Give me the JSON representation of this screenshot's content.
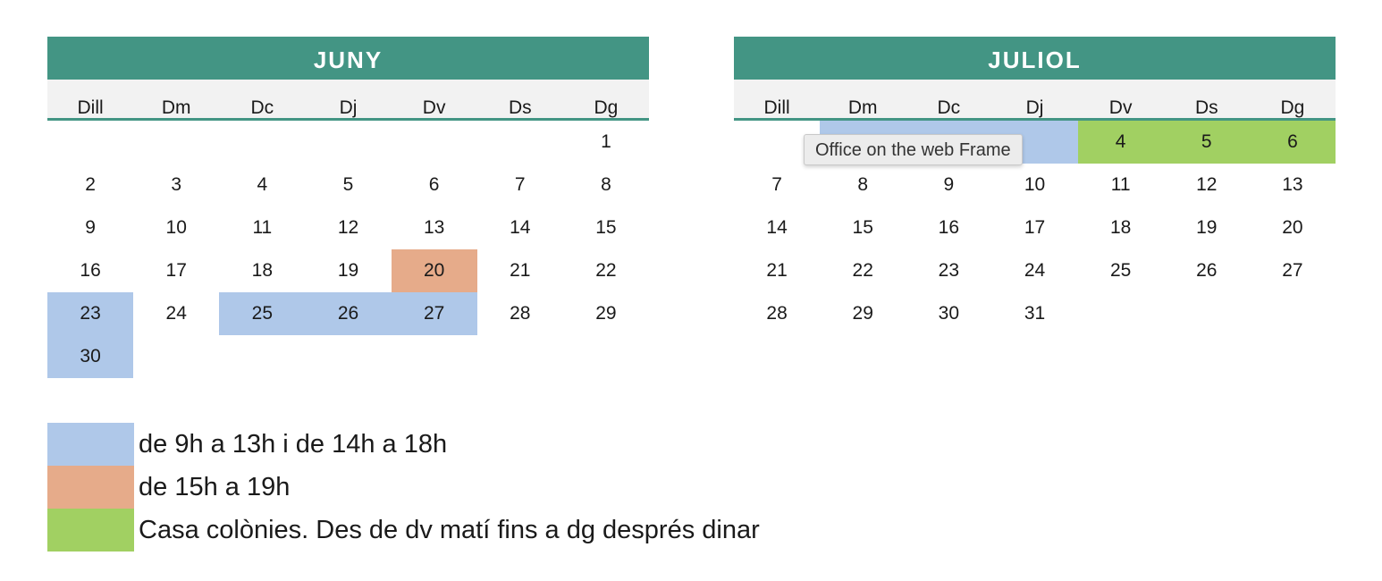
{
  "colors": {
    "header_bg": "#439584",
    "header_text": "#ffffff",
    "weekday_bg": "#f2f2f2",
    "blue": "#afc8e9",
    "orange": "#e6ab8a",
    "green": "#a1d062"
  },
  "weekdays": [
    "Dill",
    "Dm",
    "Dc",
    "Dj",
    "Dv",
    "Ds",
    "Dg"
  ],
  "months": [
    {
      "title": "JUNY",
      "weeks": [
        [
          "",
          "",
          "",
          "",
          "",
          "",
          "1"
        ],
        [
          "2",
          "3",
          "4",
          "5",
          "6",
          "7",
          "8"
        ],
        [
          "9",
          "10",
          "11",
          "12",
          "13",
          "14",
          "15"
        ],
        [
          "16",
          "17",
          "18",
          "19",
          "20",
          "21",
          "22"
        ],
        [
          "23",
          "24",
          "25",
          "26",
          "27",
          "28",
          "29"
        ],
        [
          "30",
          "",
          "",
          "",
          "",
          "",
          ""
        ]
      ],
      "highlights": {
        "20": "orange",
        "23": "blue",
        "25": "blue",
        "26": "blue",
        "27": "blue",
        "30": "blue"
      }
    },
    {
      "title": "JULIOL",
      "weeks": [
        [
          "",
          "",
          "",
          "",
          "4",
          "5",
          "6"
        ],
        [
          "7",
          "8",
          "9",
          "10",
          "11",
          "12",
          "13"
        ],
        [
          "14",
          "15",
          "16",
          "17",
          "18",
          "19",
          "20"
        ],
        [
          "21",
          "22",
          "23",
          "24",
          "25",
          "26",
          "27"
        ],
        [
          "28",
          "29",
          "30",
          "31",
          "",
          "",
          ""
        ]
      ],
      "highlights": {
        "w0c1": "blue",
        "w0c2": "blue",
        "w0c3": "blue",
        "4": "green",
        "5": "green",
        "6": "green"
      }
    }
  ],
  "tooltip": {
    "text": "Office on the web Frame"
  },
  "legend": [
    {
      "color": "blue",
      "text": "de 9h a 13h i de 14h a 18h"
    },
    {
      "color": "orange",
      "text": "de 15h a 19h"
    },
    {
      "color": "green",
      "text": "Casa colònies. Des de dv matí fins a dg després dinar"
    }
  ]
}
